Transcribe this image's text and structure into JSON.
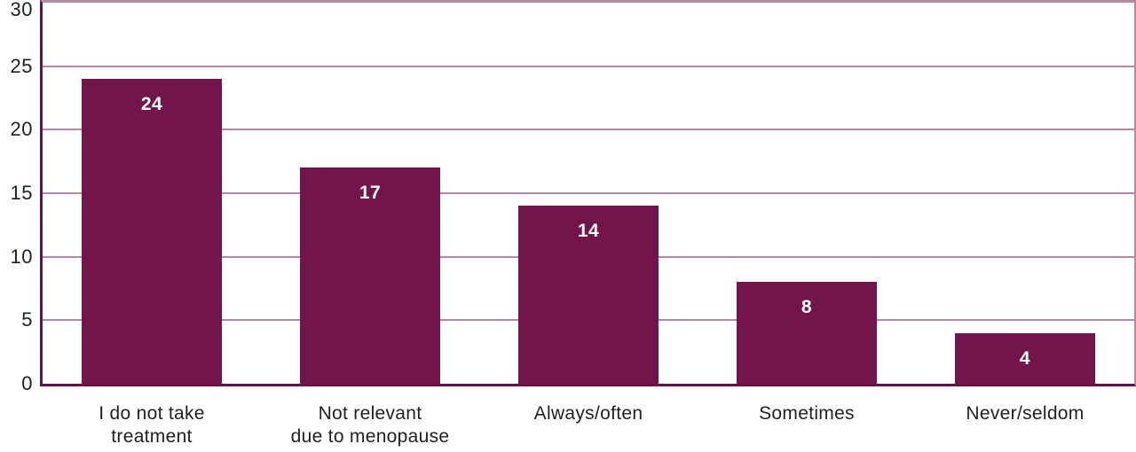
{
  "chart_data": {
    "type": "bar",
    "title": "",
    "xlabel": "",
    "ylabel": "",
    "categories": [
      "I do not take\ntreatment",
      "Not relevant\ndue to menopause",
      "Always/often",
      "Sometimes",
      "Never/seldom"
    ],
    "values": [
      24,
      17,
      14,
      8,
      4
    ],
    "ylim": [
      0,
      30
    ],
    "yticks": [
      0,
      5,
      10,
      15,
      20,
      25,
      30
    ],
    "grid": true,
    "legend": false,
    "colors": {
      "bar_fill": "#72154A",
      "axis_line": "#6D0F44",
      "grid_line": "#B28AA4",
      "tick_text": "#231F20",
      "value_text": "#FFFFFF",
      "background": "#FFFFFF"
    }
  }
}
